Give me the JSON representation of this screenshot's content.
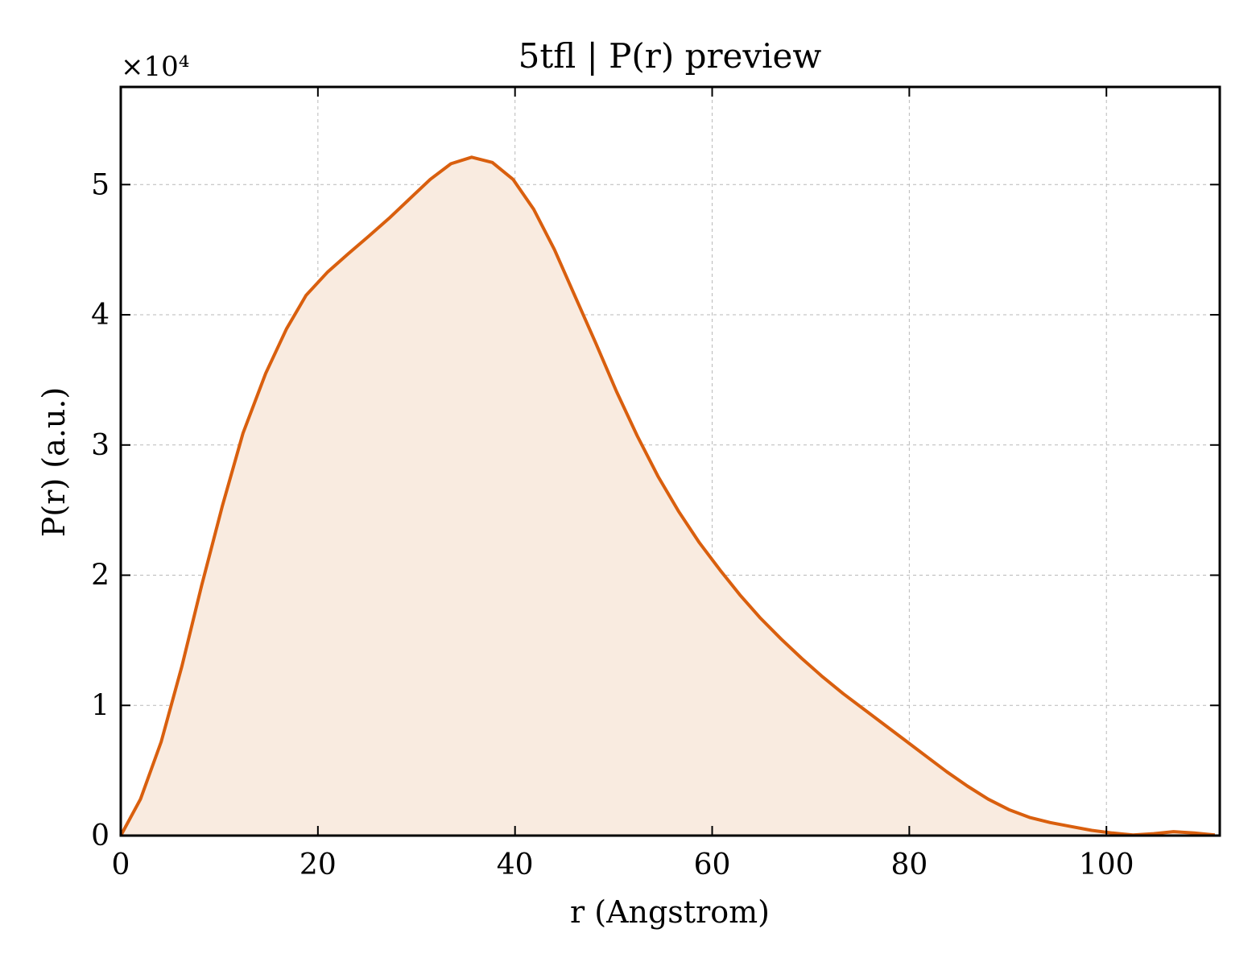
{
  "chart_data": {
    "type": "area",
    "title": "5tfl | P(r) preview",
    "xlabel": "r (Angstrom)",
    "ylabel": "P(r) (a.u.)",
    "y_multiplier_label": "×10⁴",
    "xlim": [
      0,
      111.5
    ],
    "ylim": [
      0,
      5.75
    ],
    "x_ticks": [
      0,
      20,
      40,
      60,
      80,
      100
    ],
    "y_ticks": [
      0,
      1,
      2,
      3,
      4,
      5
    ],
    "grid": true,
    "legend": "none",
    "y_unit_scale": 10000,
    "series": [
      {
        "color": "#d95f0e",
        "fill_color": "#f9ebe0",
        "x": [
          0,
          2,
          4.1,
          6.2,
          8.2,
          10.3,
          12.4,
          14.7,
          16.8,
          18.8,
          21,
          23.1,
          25.1,
          27.2,
          29.3,
          31.4,
          33.5,
          35.6,
          37.7,
          39.8,
          41.9,
          44,
          46.1,
          48.2,
          50.3,
          52.4,
          54.5,
          56.6,
          58.7,
          60.8,
          62.8,
          64.9,
          67,
          69.1,
          71.2,
          73.3,
          75.4,
          77.5,
          79.6,
          81.7,
          83.8,
          85.9,
          88,
          90.1,
          92.2,
          94.3,
          96.4,
          98.5,
          100.6,
          102.7,
          104.8,
          106.8,
          108.9,
          111
        ],
        "y": [
          0,
          0.28,
          0.72,
          1.3,
          1.92,
          2.53,
          3.09,
          3.55,
          3.89,
          4.15,
          4.33,
          4.47,
          4.6,
          4.74,
          4.89,
          5.04,
          5.16,
          5.21,
          5.17,
          5.04,
          4.81,
          4.5,
          4.14,
          3.78,
          3.41,
          3.07,
          2.76,
          2.49,
          2.25,
          2.04,
          1.85,
          1.67,
          1.51,
          1.36,
          1.22,
          1.09,
          0.97,
          0.85,
          0.73,
          0.61,
          0.49,
          0.38,
          0.28,
          0.2,
          0.14,
          0.1,
          0.07,
          0.04,
          0.02,
          0.005,
          0.015,
          0.03,
          0.02,
          0.005
        ]
      }
    ]
  }
}
